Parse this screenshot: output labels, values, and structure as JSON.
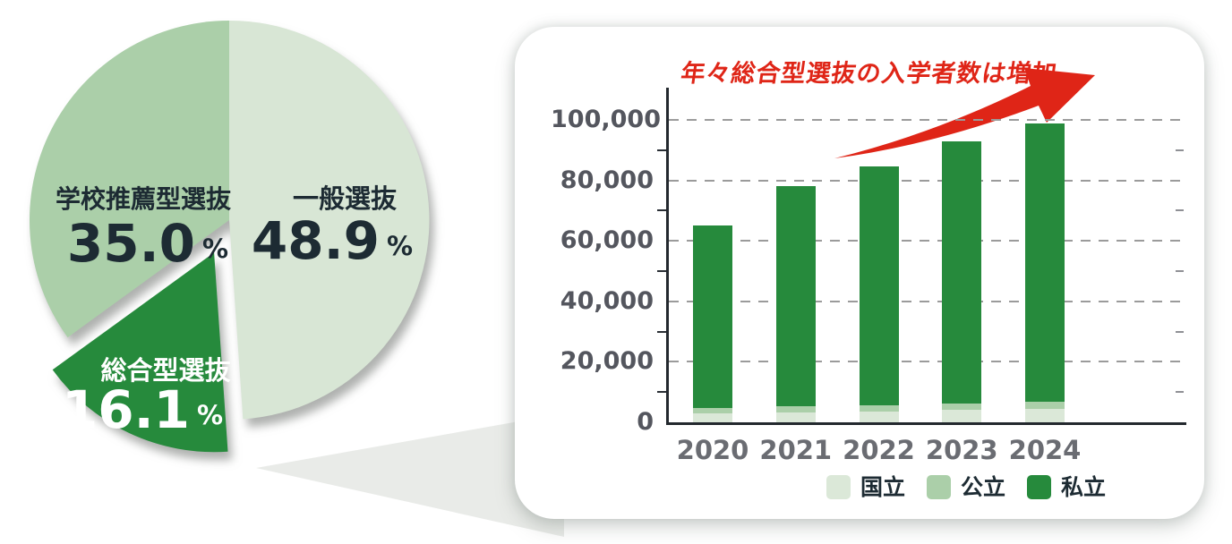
{
  "page": {
    "background": "#ffffff"
  },
  "colors": {
    "accent_red": "#df2517",
    "green_dark": "#268a3c",
    "green_medium": "#abcfa9",
    "green_light": "#dbe8d8",
    "axis": "#23282e",
    "grid": "#9b9b9b",
    "ytick_text": "#54565e",
    "xtick_text": "#6a6c72",
    "label_text": "#1d2b33",
    "card_bg": "#ffffff",
    "callout_gray": "#e9ebe8"
  },
  "chart_data": [
    {
      "id": "admission-type-share-pie",
      "type": "pie",
      "start_angle_deg": 0,
      "clockwise": true,
      "slices": [
        {
          "label": "一般選抜",
          "value": 48.9,
          "value_text": "48.9",
          "unit": "%",
          "color": "#d8e6d5",
          "label_color": "#1d2b33",
          "exploded": false
        },
        {
          "label": "総合型選抜",
          "value": 16.1,
          "value_text": "16.1",
          "unit": "%",
          "color": "#268a3c",
          "label_color": "#ffffff",
          "exploded": true
        },
        {
          "label": "学校推薦型選抜",
          "value": 35.0,
          "value_text": "35.0",
          "unit": "%",
          "color": "#abcfa9",
          "label_color": "#1d2b33",
          "exploded": false
        }
      ]
    },
    {
      "id": "sogo-senbatsu-entrants-by-year",
      "type": "bar",
      "stacked": true,
      "annotation": {
        "text": "年々総合型選抜の入学者数は増加",
        "color": "#df2517"
      },
      "categories": [
        "2020",
        "2021",
        "2022",
        "2023",
        "2024"
      ],
      "series": [
        {
          "name": "国立",
          "color": "#dbe8d8",
          "values": [
            3000,
            3300,
            3500,
            4000,
            4300
          ]
        },
        {
          "name": "公立",
          "color": "#abcfa9",
          "values": [
            1700,
            1900,
            2000,
            2200,
            2400
          ]
        },
        {
          "name": "私立",
          "color": "#268a3c",
          "values": [
            60300,
            72800,
            79000,
            86800,
            92100
          ]
        }
      ],
      "totals": [
        65000,
        78000,
        84500,
        93000,
        98800
      ],
      "ylim": [
        0,
        100000
      ],
      "ytick_step": 20000,
      "ytick_labels": [
        "0",
        "20,000",
        "40,000",
        "60,000",
        "80,000",
        "100,000"
      ],
      "grid": "horizontal-dashed",
      "legend_position": "bottom-right"
    }
  ]
}
